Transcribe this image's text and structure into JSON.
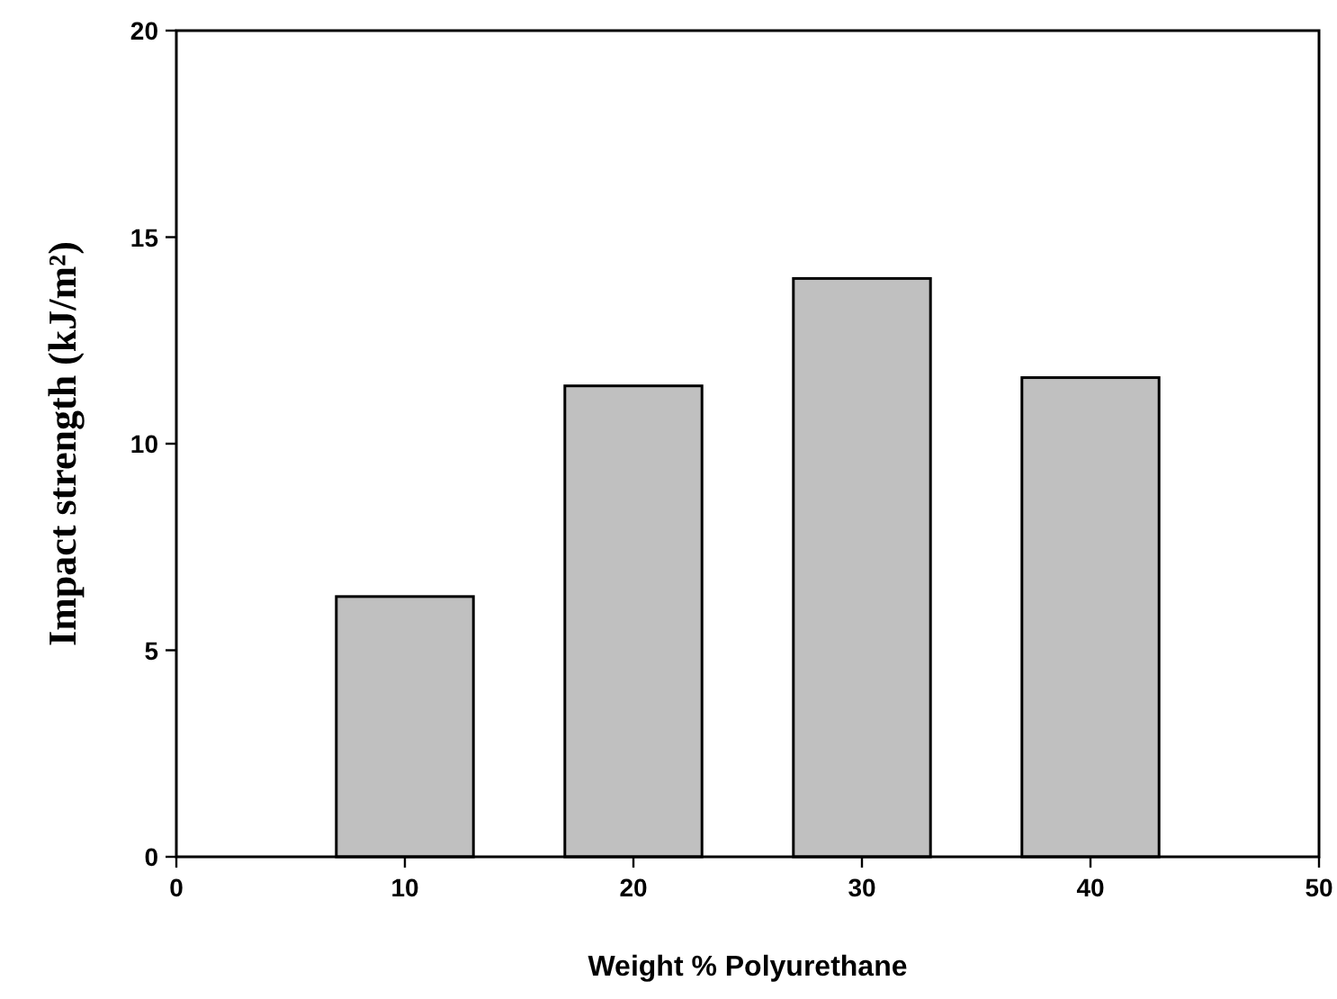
{
  "chart_data": {
    "type": "bar",
    "xlabel": "Weight % Polyurethane",
    "ylabel": "Impact strength (kJ/m²)",
    "x": [
      10,
      20,
      30,
      40
    ],
    "values": [
      6.3,
      11.4,
      14.0,
      11.6
    ],
    "color": "#c0c0c0",
    "xlim": [
      0,
      50
    ],
    "xticks": [
      0,
      10,
      20,
      30,
      40,
      50
    ],
    "ylim": [
      0,
      20
    ],
    "yticks": [
      0,
      5,
      10,
      15,
      20
    ]
  }
}
